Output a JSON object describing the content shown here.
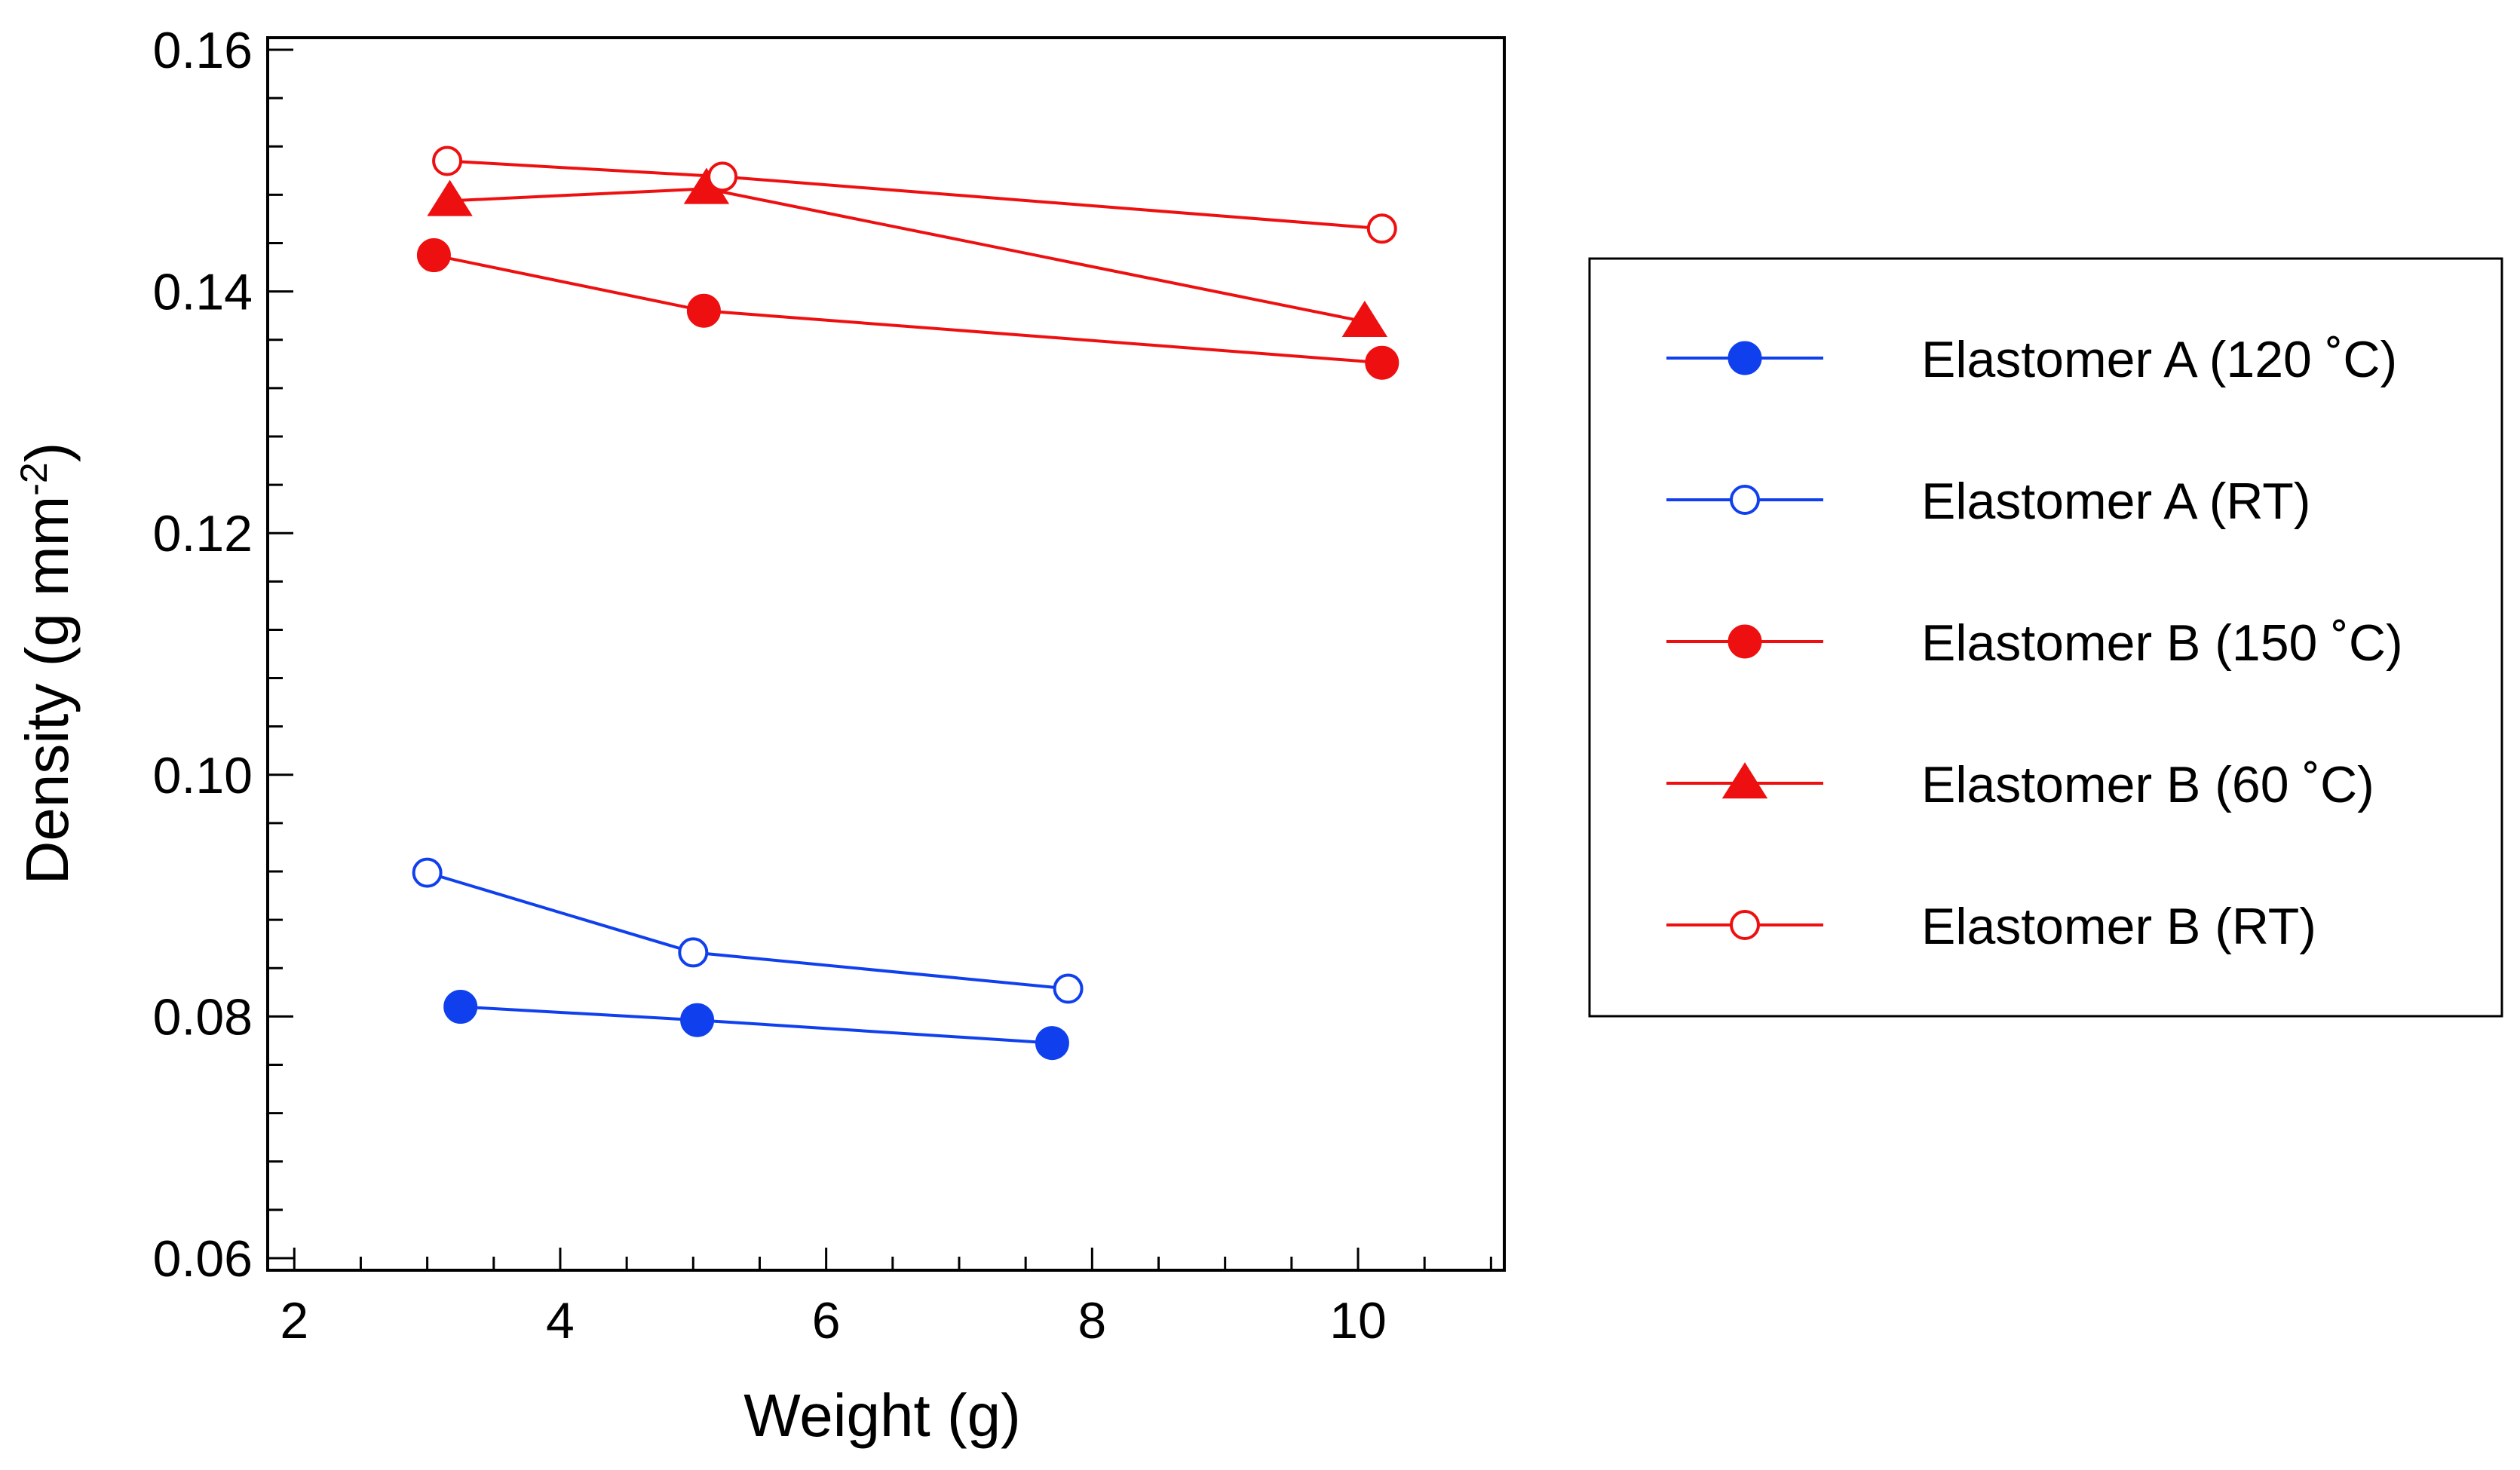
{
  "chart_data": {
    "type": "line",
    "title": "",
    "xlabel": "Weight (g)",
    "ylabel": {
      "main": "Density (g mm",
      "sup": "-2",
      "end": ")"
    },
    "xlim": [
      1.8,
      11.1
    ],
    "ylim": [
      0.059,
      0.161
    ],
    "x_ticks": [
      2,
      4,
      6,
      8,
      10
    ],
    "x_tick_labels": [
      "2",
      "4",
      "6",
      "8",
      "10"
    ],
    "x_minor_step": 0.5,
    "y_ticks": [
      0.06,
      0.08,
      0.1,
      0.12,
      0.14,
      0.16
    ],
    "y_tick_labels": [
      "0.06",
      "0.08",
      "0.10",
      "0.12",
      "0.14",
      "0.16"
    ],
    "y_minor_step": 0.004,
    "grid": false,
    "legend_position": "right",
    "series": [
      {
        "name": "Elastomer A (120 ˚C)",
        "color": "#1040ee",
        "marker": "circle-filled",
        "x": [
          3.25,
          5.03,
          7.7
        ],
        "y": [
          0.0808,
          0.0797,
          0.0778
        ]
      },
      {
        "name": "Elastomer A (RT)",
        "color": "#1040ee",
        "marker": "circle-open",
        "x": [
          3.0,
          5.0,
          7.82
        ],
        "y": [
          0.0919,
          0.0853,
          0.0823
        ]
      },
      {
        "name": "Elastomer B (150 ˚C)",
        "color": "#ee1010",
        "marker": "circle-filled",
        "x": [
          3.05,
          5.08,
          10.18
        ],
        "y": [
          0.143,
          0.1384,
          0.1341
        ]
      },
      {
        "name": "Elastomer B (60 ˚C)",
        "color": "#ee1010",
        "marker": "triangle-filled",
        "x": [
          3.17,
          5.1,
          10.05
        ],
        "y": [
          0.1475,
          0.1485,
          0.1375
        ]
      },
      {
        "name": "Elastomer B (RT)",
        "color": "#ee1010",
        "marker": "circle-open",
        "x": [
          3.15,
          5.22,
          10.18
        ],
        "y": [
          0.1508,
          0.1495,
          0.1452
        ]
      }
    ]
  }
}
